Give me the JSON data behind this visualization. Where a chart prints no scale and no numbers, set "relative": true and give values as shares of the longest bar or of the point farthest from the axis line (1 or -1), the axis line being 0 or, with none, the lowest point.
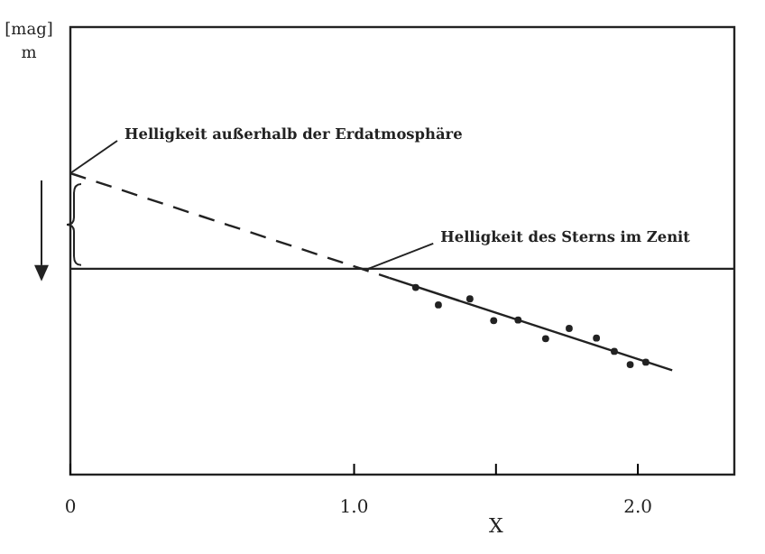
{
  "chart_data": {
    "type": "scatter",
    "relative": true,
    "xlabel": "X",
    "xlim": [
      0,
      2.34
    ],
    "xticks": [
      0,
      {
        "value": 1,
        "label": "1.0"
      },
      {
        "value": 1.5,
        "label": null
      },
      {
        "value": 2,
        "label": "2.0"
      }
    ],
    "grid": false,
    "series": [
      {
        "color": "#222222",
        "marker": "circle",
        "x": [
          1.217,
          1.297,
          1.408,
          1.492,
          1.578,
          1.675,
          1.758,
          1.854,
          1.917,
          1.973,
          2.028
        ],
        "values": [
          0.621,
          0.563,
          0.583,
          0.511,
          0.513,
          0.451,
          0.485,
          0.453,
          0.409,
          0.365,
          0.373
        ]
      },
      {
        "type": "line",
        "color": "#222222",
        "line_style": "dashed",
        "marker": "none",
        "x": [
          0,
          1.123
        ],
        "values": [
          1,
          0.653
        ]
      },
      {
        "type": "line",
        "color": "#222222",
        "line_style": "solid",
        "marker": "none",
        "x": [
          1.123,
          2.121
        ],
        "values": [
          0.653,
          0.346
        ]
      }
    ],
    "ref_lines": [
      {
        "axis": "y",
        "value": 0.683,
        "color": "#222222",
        "line_style": "solid"
      }
    ],
    "annotations": [
      "[mag]\nm",
      {
        "text": "Helligkeit außerhalb der Erdatmosphäre",
        "x": 0,
        "y": 1
      },
      {
        "text": "Helligkeit des Sterns im Zenit",
        "x": 1.05,
        "y": 0.683
      }
    ]
  }
}
